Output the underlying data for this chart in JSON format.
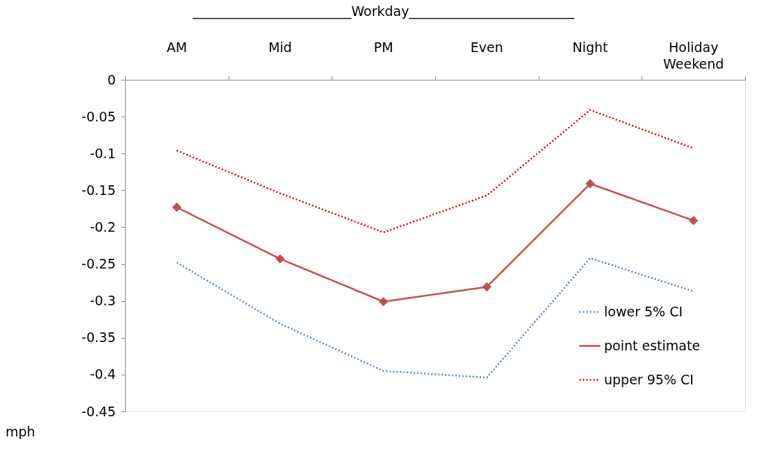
{
  "chart_data": {
    "type": "line",
    "categories": [
      "AM",
      "Mid",
      "PM",
      "Even",
      "Night",
      "Holiday Weekend"
    ],
    "series": [
      {
        "name": "lower 5% CI",
        "color": "#4f81bd",
        "line_style": "dotted",
        "marker": "none",
        "values": [
          -0.248,
          -0.331,
          -0.395,
          -0.404,
          -0.242,
          -0.287
        ]
      },
      {
        "name": "point estimate",
        "color": "#c0504d",
        "line_style": "solid",
        "marker": "diamond",
        "values": [
          -0.173,
          -0.243,
          -0.301,
          -0.281,
          -0.141,
          -0.191
        ]
      },
      {
        "name": "upper 95% CI",
        "color": "#c00000",
        "line_style": "dotted",
        "marker": "none",
        "values": [
          -0.096,
          -0.154,
          -0.207,
          -0.157,
          -0.041,
          -0.093
        ]
      }
    ],
    "ylim": [
      -0.45,
      0
    ],
    "yticks": [
      0,
      -0.05,
      -0.1,
      -0.15,
      -0.2,
      -0.25,
      -0.3,
      -0.35,
      -0.4,
      -0.45
    ],
    "ylabel": "mph",
    "annotations": [
      "________________________Workday_________________________"
    ],
    "grid": false,
    "legend": "bottom right"
  }
}
